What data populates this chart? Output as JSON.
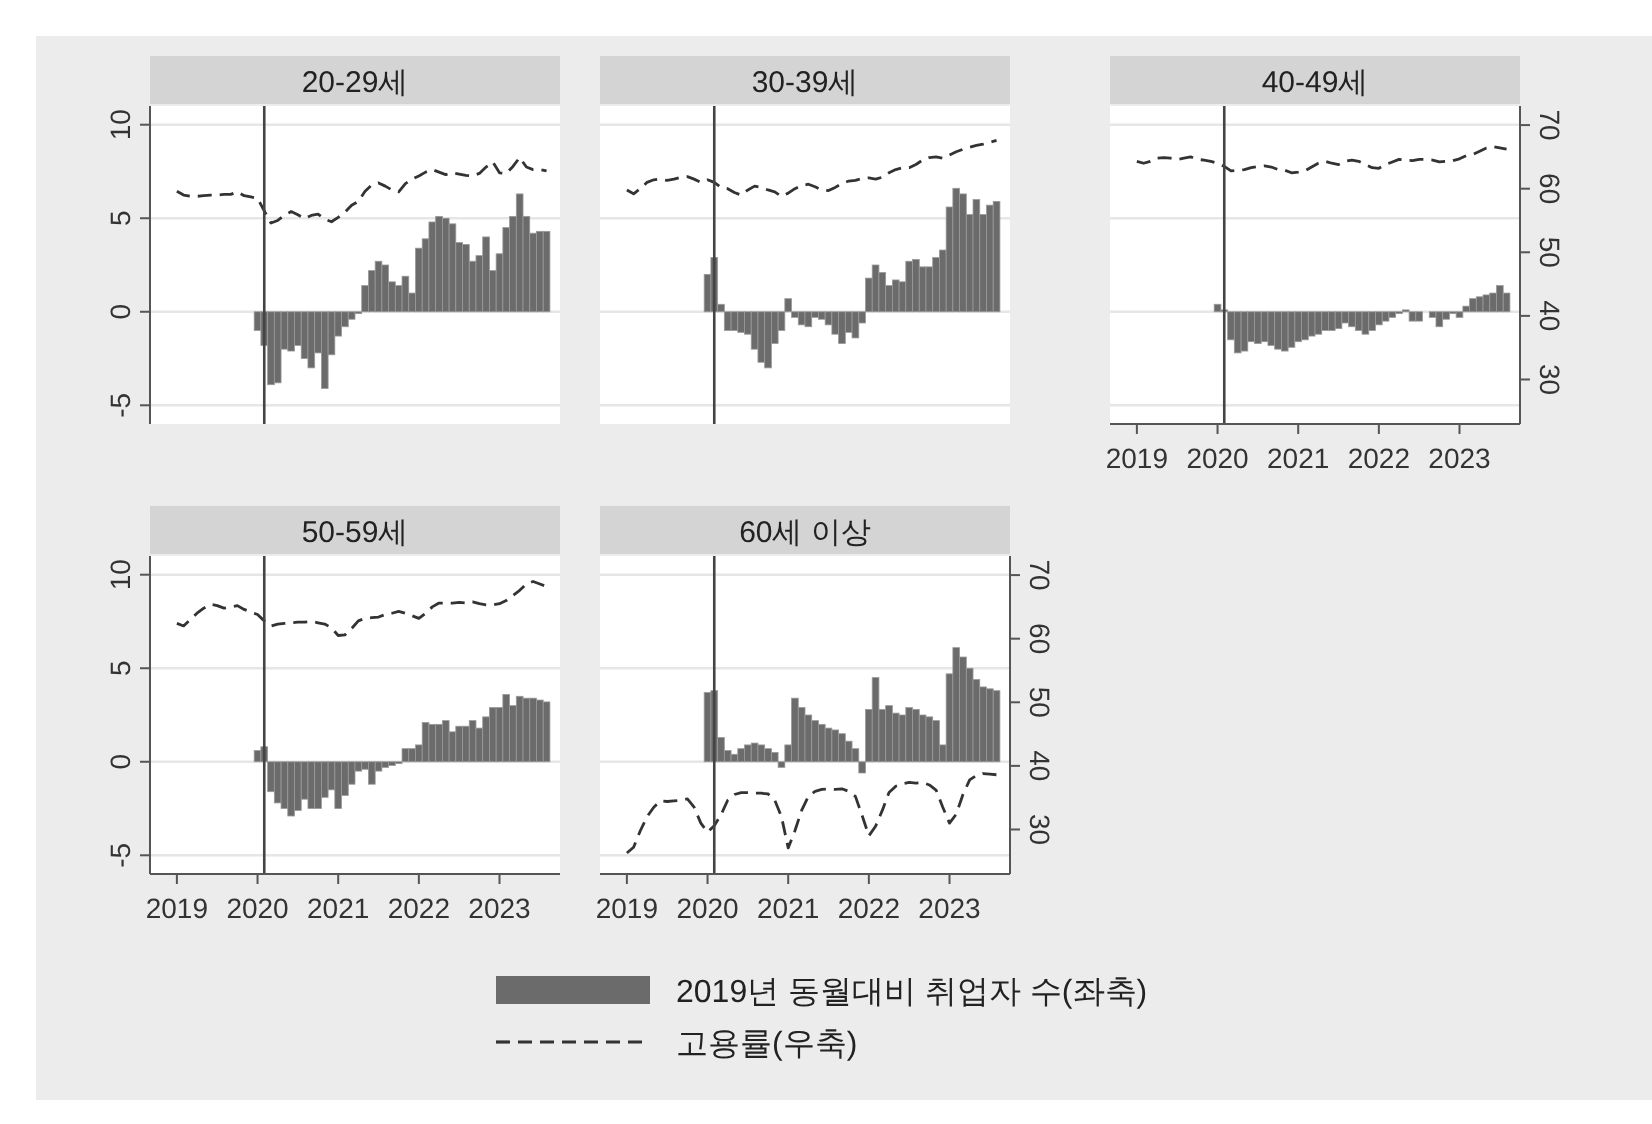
{
  "chart_data": [
    {
      "type": "bar",
      "title": "20-29세",
      "legend": "bottom",
      "grid": "y",
      "tick_labels": "y",
      "xlim": [
        "2018-09",
        "2023-10"
      ],
      "ylim": [
        -6,
        11
      ],
      "yticks": [
        -5,
        0,
        5,
        10
      ],
      "y2lim": [
        23,
        73
      ],
      "ref_lines": [
        {
          "axis": "x",
          "value": "2020-02",
          "color": "#444444"
        }
      ],
      "x": [
        "2020-01",
        "2020-02",
        "2020-03",
        "2020-04",
        "2020-05",
        "2020-06",
        "2020-07",
        "2020-08",
        "2020-09",
        "2020-10",
        "2020-11",
        "2020-12",
        "2021-01",
        "2021-02",
        "2021-03",
        "2021-04",
        "2021-05",
        "2021-06",
        "2021-07",
        "2021-08",
        "2021-09",
        "2021-10",
        "2021-11",
        "2021-12",
        "2022-01",
        "2022-02",
        "2022-03",
        "2022-04",
        "2022-05",
        "2022-06",
        "2022-07",
        "2022-08",
        "2022-09",
        "2022-10",
        "2022-11",
        "2022-12",
        "2023-01",
        "2023-02",
        "2023-03",
        "2023-04",
        "2023-05",
        "2023-06",
        "2023-07",
        "2023-08"
      ],
      "series": [
        {
          "name": "2019년 동월대비 취업자 수(좌축)",
          "color": "#6b6b6b",
          "values": [
            -1.0,
            -1.8,
            -3.9,
            -3.8,
            -2.0,
            -2.1,
            -1.8,
            -2.5,
            -3.0,
            -2.2,
            -4.1,
            -2.3,
            -1.3,
            -0.8,
            -0.4,
            -0.1,
            1.4,
            2.2,
            2.7,
            2.5,
            1.6,
            1.4,
            1.9,
            1.0,
            3.4,
            3.9,
            4.8,
            5.1,
            5.0,
            4.7,
            3.7,
            3.6,
            2.7,
            3.0,
            4.0,
            2.2,
            3.1,
            4.5,
            5.1,
            6.3,
            5.1,
            4.2,
            4.3,
            4.3
          ]
        },
        {
          "name": "고용률(우축)",
          "type": "line",
          "axis": "y2",
          "color": "#333333",
          "line_style": "dashed",
          "x": [
            "2019-01",
            "2019-02",
            "2019-03",
            "2019-04",
            "2019-05",
            "2019-06",
            "2019-07",
            "2019-08",
            "2019-09",
            "2019-10",
            "2019-11",
            "2019-12",
            "2020-01",
            "2020-02",
            "2020-03",
            "2020-04",
            "2020-05",
            "2020-06",
            "2020-07",
            "2020-08",
            "2020-09",
            "2020-10",
            "2020-11",
            "2020-12",
            "2021-01",
            "2021-02",
            "2021-03",
            "2021-04",
            "2021-05",
            "2021-06",
            "2021-07",
            "2021-08",
            "2021-09",
            "2021-10",
            "2021-11",
            "2021-12",
            "2022-01",
            "2022-02",
            "2022-03",
            "2022-04",
            "2022-05",
            "2022-06",
            "2022-07",
            "2022-08",
            "2022-09",
            "2022-10",
            "2022-11",
            "2022-12",
            "2023-01",
            "2023-02",
            "2023-03",
            "2023-04",
            "2023-05",
            "2023-06",
            "2023-07",
            "2023-08"
          ],
          "values": [
            59.6,
            59.0,
            58.8,
            58.8,
            58.9,
            59.0,
            59.0,
            59.1,
            59.1,
            59.5,
            58.9,
            58.7,
            58.5,
            56.5,
            54.6,
            55.0,
            55.8,
            56.4,
            55.9,
            55.3,
            55.8,
            56.0,
            55.2,
            54.8,
            55.5,
            56.3,
            57.4,
            58.0,
            59.6,
            60.6,
            60.9,
            60.4,
            59.8,
            59.5,
            60.8,
            61.5,
            62.0,
            62.6,
            63.0,
            62.6,
            62.2,
            62.5,
            62.3,
            62.1,
            62.0,
            62.4,
            63.4,
            64.2,
            62.5,
            62.4,
            63.5,
            64.9,
            63.4,
            63.0,
            63.0,
            62.8
          ]
        }
      ]
    },
    {
      "type": "bar",
      "title": "30-39세",
      "grid": "y",
      "tick_labels": false,
      "xlim": [
        "2018-09",
        "2023-10"
      ],
      "ylim": [
        -6,
        11
      ],
      "yticks": [
        -5,
        0,
        5,
        10
      ],
      "y2lim": [
        23,
        73
      ],
      "ref_lines": [
        {
          "axis": "x",
          "value": "2020-02",
          "color": "#444444"
        }
      ],
      "x": [
        "2020-01",
        "2020-02",
        "2020-03",
        "2020-04",
        "2020-05",
        "2020-06",
        "2020-07",
        "2020-08",
        "2020-09",
        "2020-10",
        "2020-11",
        "2020-12",
        "2021-01",
        "2021-02",
        "2021-03",
        "2021-04",
        "2021-05",
        "2021-06",
        "2021-07",
        "2021-08",
        "2021-09",
        "2021-10",
        "2021-11",
        "2021-12",
        "2022-01",
        "2022-02",
        "2022-03",
        "2022-04",
        "2022-05",
        "2022-06",
        "2022-07",
        "2022-08",
        "2022-09",
        "2022-10",
        "2022-11",
        "2022-12",
        "2023-01",
        "2023-02",
        "2023-03",
        "2023-04",
        "2023-05",
        "2023-06",
        "2023-07",
        "2023-08"
      ],
      "series": [
        {
          "type": "bar",
          "color": "#6b6b6b",
          "values": [
            2.0,
            2.9,
            0.4,
            -1.0,
            -1.0,
            -1.1,
            -1.2,
            -2.0,
            -2.7,
            -3.0,
            -1.7,
            -1.0,
            0.7,
            -0.3,
            -0.7,
            -0.8,
            -0.3,
            -0.4,
            -0.7,
            -1.2,
            -1.7,
            -1.1,
            -1.4,
            -0.6,
            1.8,
            2.5,
            2.1,
            1.4,
            1.7,
            1.6,
            2.7,
            2.8,
            2.4,
            2.4,
            2.9,
            3.3,
            5.6,
            6.6,
            6.3,
            5.2,
            6.0,
            5.2,
            5.7,
            5.9
          ]
        },
        {
          "type": "line",
          "axis": "y2",
          "color": "#333333",
          "line_style": "dashed",
          "x": [
            "2019-01",
            "2019-02",
            "2019-03",
            "2019-04",
            "2019-05",
            "2019-06",
            "2019-07",
            "2019-08",
            "2019-09",
            "2019-10",
            "2019-11",
            "2019-12",
            "2020-01",
            "2020-02",
            "2020-03",
            "2020-04",
            "2020-05",
            "2020-06",
            "2020-07",
            "2020-08",
            "2020-09",
            "2020-10",
            "2020-11",
            "2020-12",
            "2021-01",
            "2021-02",
            "2021-03",
            "2021-04",
            "2021-05",
            "2021-06",
            "2021-07",
            "2021-08",
            "2021-09",
            "2021-10",
            "2021-11",
            "2021-12",
            "2022-01",
            "2022-02",
            "2022-03",
            "2022-04",
            "2022-05",
            "2022-06",
            "2022-07",
            "2022-08",
            "2022-09",
            "2022-10",
            "2022-11",
            "2022-12",
            "2023-01",
            "2023-02",
            "2023-03",
            "2023-04",
            "2023-05",
            "2023-06",
            "2023-07",
            "2023-08"
          ],
          "values": [
            59.8,
            59.2,
            60.0,
            61.0,
            61.4,
            61.5,
            61.3,
            61.5,
            61.8,
            61.9,
            61.5,
            61.0,
            61.4,
            61.0,
            60.2,
            60.0,
            59.4,
            59.0,
            59.8,
            60.4,
            60.2,
            59.8,
            59.5,
            58.8,
            59.3,
            60.0,
            60.5,
            60.7,
            60.3,
            59.8,
            59.7,
            60.2,
            60.8,
            61.2,
            61.3,
            61.6,
            61.7,
            61.5,
            61.8,
            62.5,
            63.0,
            63.3,
            63.3,
            63.8,
            64.5,
            64.9,
            65.0,
            64.8,
            65.3,
            65.8,
            66.2,
            66.5,
            66.8,
            67.0,
            67.3,
            67.6
          ]
        }
      ]
    },
    {
      "type": "bar",
      "title": "40-49세",
      "grid": "y",
      "tick_labels": "xy2",
      "xlim": [
        "2018-09",
        "2023-10"
      ],
      "xticks": [
        "2019",
        "2020",
        "2021",
        "2022",
        "2023"
      ],
      "ylim": [
        -6,
        11
      ],
      "y2lim": [
        23,
        73
      ],
      "y2ticks": [
        30,
        40,
        50,
        60,
        70
      ],
      "ref_lines": [
        {
          "axis": "x",
          "value": "2020-02",
          "color": "#444444"
        }
      ],
      "x": [
        "2020-01",
        "2020-02",
        "2020-03",
        "2020-04",
        "2020-05",
        "2020-06",
        "2020-07",
        "2020-08",
        "2020-09",
        "2020-10",
        "2020-11",
        "2020-12",
        "2021-01",
        "2021-02",
        "2021-03",
        "2021-04",
        "2021-05",
        "2021-06",
        "2021-07",
        "2021-08",
        "2021-09",
        "2021-10",
        "2021-11",
        "2021-12",
        "2022-01",
        "2022-02",
        "2022-03",
        "2022-04",
        "2022-05",
        "2022-06",
        "2022-07",
        "2022-08",
        "2022-09",
        "2022-10",
        "2022-11",
        "2022-12",
        "2023-01",
        "2023-02",
        "2023-03",
        "2023-04",
        "2023-05",
        "2023-06",
        "2023-07",
        "2023-08"
      ],
      "series": [
        {
          "type": "bar",
          "color": "#6b6b6b",
          "values": [
            0.4,
            0.1,
            -1.5,
            -2.2,
            -2.1,
            -1.6,
            -1.7,
            -1.6,
            -1.8,
            -2.0,
            -2.1,
            -1.9,
            -1.6,
            -1.5,
            -1.3,
            -1.2,
            -1.0,
            -1.0,
            -0.9,
            -0.6,
            -0.8,
            -1.0,
            -1.2,
            -1.0,
            -0.7,
            -0.5,
            -0.3,
            -0.1,
            0.1,
            -0.5,
            -0.5,
            0,
            -0.3,
            -0.8,
            -0.4,
            -0.1,
            -0.3,
            0.3,
            0.7,
            0.8,
            0.9,
            1.0,
            1.4,
            1.0
          ]
        },
        {
          "type": "line",
          "axis": "y2",
          "color": "#333333",
          "line_style": "dashed",
          "x": [
            "2019-01",
            "2019-02",
            "2019-03",
            "2019-04",
            "2019-05",
            "2019-06",
            "2019-07",
            "2019-08",
            "2019-09",
            "2019-10",
            "2019-11",
            "2019-12",
            "2020-01",
            "2020-02",
            "2020-03",
            "2020-04",
            "2020-05",
            "2020-06",
            "2020-07",
            "2020-08",
            "2020-09",
            "2020-10",
            "2020-11",
            "2020-12",
            "2021-01",
            "2021-02",
            "2021-03",
            "2021-04",
            "2021-05",
            "2021-06",
            "2021-07",
            "2021-08",
            "2021-09",
            "2021-10",
            "2021-11",
            "2021-12",
            "2022-01",
            "2022-02",
            "2022-03",
            "2022-04",
            "2022-05",
            "2022-06",
            "2022-07",
            "2022-08",
            "2022-09",
            "2022-10",
            "2022-11",
            "2022-12",
            "2023-01",
            "2023-02",
            "2023-03",
            "2023-04",
            "2023-05",
            "2023-06",
            "2023-07",
            "2023-08"
          ],
          "values": [
            64.3,
            64.0,
            64.3,
            64.8,
            64.9,
            64.8,
            64.6,
            64.8,
            65.0,
            64.6,
            64.5,
            64.3,
            64.0,
            63.5,
            62.8,
            62.9,
            63.0,
            63.3,
            63.5,
            63.6,
            63.4,
            63.0,
            62.9,
            62.5,
            62.6,
            62.8,
            63.4,
            64.0,
            64.3,
            64.0,
            63.8,
            64.3,
            64.5,
            64.3,
            63.8,
            63.3,
            63.2,
            63.8,
            64.2,
            64.6,
            64.5,
            64.4,
            64.6,
            64.6,
            64.5,
            64.2,
            64.3,
            64.4,
            64.7,
            65.2,
            65.4,
            65.9,
            66.4,
            66.6,
            66.4,
            66.2
          ]
        }
      ]
    },
    {
      "type": "bar",
      "title": "50-59세",
      "grid": "y",
      "tick_labels": "xy",
      "xlim": [
        "2018-09",
        "2023-10"
      ],
      "xticks": [
        "2019",
        "2020",
        "2021",
        "2022",
        "2023"
      ],
      "ylim": [
        -6,
        11
      ],
      "yticks": [
        -5,
        0,
        5,
        10
      ],
      "y2lim": [
        23,
        73
      ],
      "ref_lines": [
        {
          "axis": "x",
          "value": "2020-02",
          "color": "#444444"
        }
      ],
      "x": [
        "2020-01",
        "2020-02",
        "2020-03",
        "2020-04",
        "2020-05",
        "2020-06",
        "2020-07",
        "2020-08",
        "2020-09",
        "2020-10",
        "2020-11",
        "2020-12",
        "2021-01",
        "2021-02",
        "2021-03",
        "2021-04",
        "2021-05",
        "2021-06",
        "2021-07",
        "2021-08",
        "2021-09",
        "2021-10",
        "2021-11",
        "2021-12",
        "2022-01",
        "2022-02",
        "2022-03",
        "2022-04",
        "2022-05",
        "2022-06",
        "2022-07",
        "2022-08",
        "2022-09",
        "2022-10",
        "2022-11",
        "2022-12",
        "2023-01",
        "2023-02",
        "2023-03",
        "2023-04",
        "2023-05",
        "2023-06",
        "2023-07",
        "2023-08"
      ],
      "series": [
        {
          "type": "bar",
          "color": "#6b6b6b",
          "values": [
            0.6,
            0.8,
            -1.6,
            -2.2,
            -2.5,
            -2.9,
            -2.6,
            -2.0,
            -2.5,
            -2.5,
            -1.9,
            -1.5,
            -2.5,
            -1.8,
            -1.2,
            -0.5,
            -0.4,
            -1.2,
            -0.5,
            -0.3,
            -0.2,
            -0.1,
            0.7,
            0.7,
            0.9,
            2.1,
            2.0,
            2.0,
            2.2,
            1.6,
            1.9,
            1.9,
            2.2,
            1.8,
            2.4,
            2.9,
            2.9,
            3.6,
            3.0,
            3.5,
            3.4,
            3.4,
            3.3,
            3.2
          ]
        },
        {
          "type": "line",
          "axis": "y2",
          "color": "#333333",
          "line_style": "dashed",
          "x": [
            "2019-01",
            "2019-02",
            "2019-03",
            "2019-04",
            "2019-05",
            "2019-06",
            "2019-07",
            "2019-08",
            "2019-09",
            "2019-10",
            "2019-11",
            "2019-12",
            "2020-01",
            "2020-02",
            "2020-03",
            "2020-04",
            "2020-05",
            "2020-06",
            "2020-07",
            "2020-08",
            "2020-09",
            "2020-10",
            "2020-11",
            "2020-12",
            "2021-01",
            "2021-02",
            "2021-03",
            "2021-04",
            "2021-05",
            "2021-06",
            "2021-07",
            "2021-08",
            "2021-09",
            "2021-10",
            "2021-11",
            "2021-12",
            "2022-01",
            "2022-02",
            "2022-03",
            "2022-04",
            "2022-05",
            "2022-06",
            "2022-07",
            "2022-08",
            "2022-09",
            "2022-10",
            "2022-11",
            "2022-12",
            "2023-01",
            "2023-02",
            "2023-03",
            "2023-04",
            "2023-05",
            "2023-06",
            "2023-07",
            "2023-08"
          ],
          "values": [
            62.4,
            62.0,
            63.0,
            64.0,
            64.8,
            65.4,
            65.2,
            64.8,
            65.0,
            65.2,
            64.6,
            64.2,
            63.8,
            62.8,
            62.0,
            62.3,
            62.4,
            62.5,
            62.6,
            62.6,
            62.7,
            62.5,
            62.3,
            61.7,
            60.5,
            60.6,
            61.6,
            62.8,
            63.2,
            63.3,
            63.4,
            63.8,
            64.0,
            64.3,
            64.0,
            63.6,
            63.2,
            64.0,
            65.0,
            65.6,
            65.6,
            65.6,
            65.7,
            65.6,
            65.8,
            65.5,
            65.3,
            65.3,
            65.5,
            66.0,
            66.8,
            67.6,
            68.6,
            69.0,
            68.6,
            68.2
          ]
        }
      ]
    },
    {
      "type": "bar",
      "title": "60세 이상",
      "grid": "y",
      "tick_labels": "xy2",
      "xlim": [
        "2018-09",
        "2023-10"
      ],
      "xticks": [
        "2019",
        "2020",
        "2021",
        "2022",
        "2023"
      ],
      "ylim": [
        -6,
        11
      ],
      "y2lim": [
        23,
        73
      ],
      "y2ticks": [
        30,
        40,
        50,
        60,
        70
      ],
      "ref_lines": [
        {
          "axis": "x",
          "value": "2020-02",
          "color": "#444444"
        }
      ],
      "x": [
        "2020-01",
        "2020-02",
        "2020-03",
        "2020-04",
        "2020-05",
        "2020-06",
        "2020-07",
        "2020-08",
        "2020-09",
        "2020-10",
        "2020-11",
        "2020-12",
        "2021-01",
        "2021-02",
        "2021-03",
        "2021-04",
        "2021-05",
        "2021-06",
        "2021-07",
        "2021-08",
        "2021-09",
        "2021-10",
        "2021-11",
        "2021-12",
        "2022-01",
        "2022-02",
        "2022-03",
        "2022-04",
        "2022-05",
        "2022-06",
        "2022-07",
        "2022-08",
        "2022-09",
        "2022-10",
        "2022-11",
        "2022-12",
        "2023-01",
        "2023-02",
        "2023-03",
        "2023-04",
        "2023-05",
        "2023-06",
        "2023-07",
        "2023-08"
      ],
      "series": [
        {
          "type": "bar",
          "color": "#6b6b6b",
          "values": [
            3.7,
            3.8,
            1.3,
            0.6,
            0.4,
            0.7,
            0.9,
            1.0,
            0.9,
            0.7,
            0.5,
            -0.3,
            0.9,
            3.4,
            2.9,
            2.5,
            2.2,
            2.0,
            1.8,
            1.7,
            1.5,
            1.1,
            0.7,
            -0.6,
            2.8,
            4.5,
            2.8,
            3.0,
            2.6,
            2.5,
            2.9,
            2.8,
            2.5,
            2.4,
            2.2,
            0.9,
            4.7,
            6.1,
            5.6,
            5.0,
            4.4,
            4.0,
            3.9,
            3.8
          ]
        },
        {
          "type": "line",
          "axis": "y2",
          "color": "#333333",
          "line_style": "dashed",
          "x": [
            "2019-01",
            "2019-02",
            "2019-03",
            "2019-04",
            "2019-05",
            "2019-06",
            "2019-07",
            "2019-08",
            "2019-09",
            "2019-10",
            "2019-11",
            "2019-12",
            "2020-01",
            "2020-02",
            "2020-03",
            "2020-04",
            "2020-05",
            "2020-06",
            "2020-07",
            "2020-08",
            "2020-09",
            "2020-10",
            "2020-11",
            "2020-12",
            "2021-01",
            "2021-02",
            "2021-03",
            "2021-04",
            "2021-05",
            "2021-06",
            "2021-07",
            "2021-08",
            "2021-09",
            "2021-10",
            "2021-11",
            "2021-12",
            "2022-01",
            "2022-02",
            "2022-03",
            "2022-04",
            "2022-05",
            "2022-06",
            "2022-07",
            "2022-08",
            "2022-09",
            "2022-10",
            "2022-11",
            "2022-12",
            "2023-01",
            "2023-02",
            "2023-03",
            "2023-04",
            "2023-05",
            "2023-06",
            "2023-07",
            "2023-08"
          ],
          "values": [
            26.3,
            27.2,
            29.8,
            32.0,
            33.5,
            34.5,
            34.4,
            34.5,
            34.6,
            34.8,
            33.5,
            31.0,
            29.6,
            30.6,
            32.3,
            34.6,
            35.5,
            35.8,
            35.8,
            35.7,
            35.7,
            35.6,
            34.6,
            32.0,
            27.1,
            29.8,
            33.0,
            35.2,
            36.0,
            36.3,
            36.4,
            36.3,
            36.4,
            36.0,
            35.2,
            32.2,
            29.0,
            30.5,
            33.0,
            35.8,
            36.8,
            37.2,
            37.4,
            37.3,
            37.4,
            37.0,
            36.2,
            33.5,
            31.0,
            32.4,
            35.5,
            37.8,
            38.5,
            38.8,
            38.7,
            38.6
          ]
        }
      ]
    }
  ]
}
